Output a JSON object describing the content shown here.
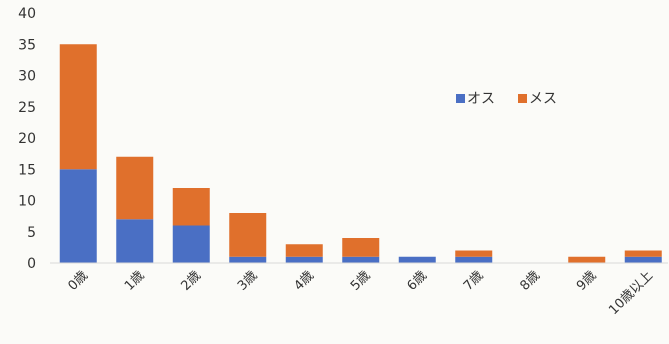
{
  "chart_data": {
    "type": "bar",
    "stacked": true,
    "categories": [
      "0歳",
      "1歳",
      "2歳",
      "3歳",
      "4歳",
      "5歳",
      "6歳",
      "7歳",
      "8歳",
      "9歳",
      "10歳以上"
    ],
    "series": [
      {
        "name": "オス",
        "color": "#4a6fc4",
        "values": [
          15,
          7,
          6,
          1,
          1,
          1,
          1,
          1,
          0,
          0,
          1
        ]
      },
      {
        "name": "メス",
        "color": "#e0702c",
        "values": [
          20,
          10,
          6,
          7,
          2,
          3,
          0,
          1,
          0,
          1,
          1
        ]
      }
    ],
    "ylim": [
      0,
      40
    ],
    "yticks": [
      "0",
      "5",
      "10",
      "15",
      "20",
      "25",
      "30",
      "35",
      "40"
    ],
    "grid": false,
    "legend": "top-right",
    "title": "",
    "xlabel": "",
    "ylabel": ""
  }
}
